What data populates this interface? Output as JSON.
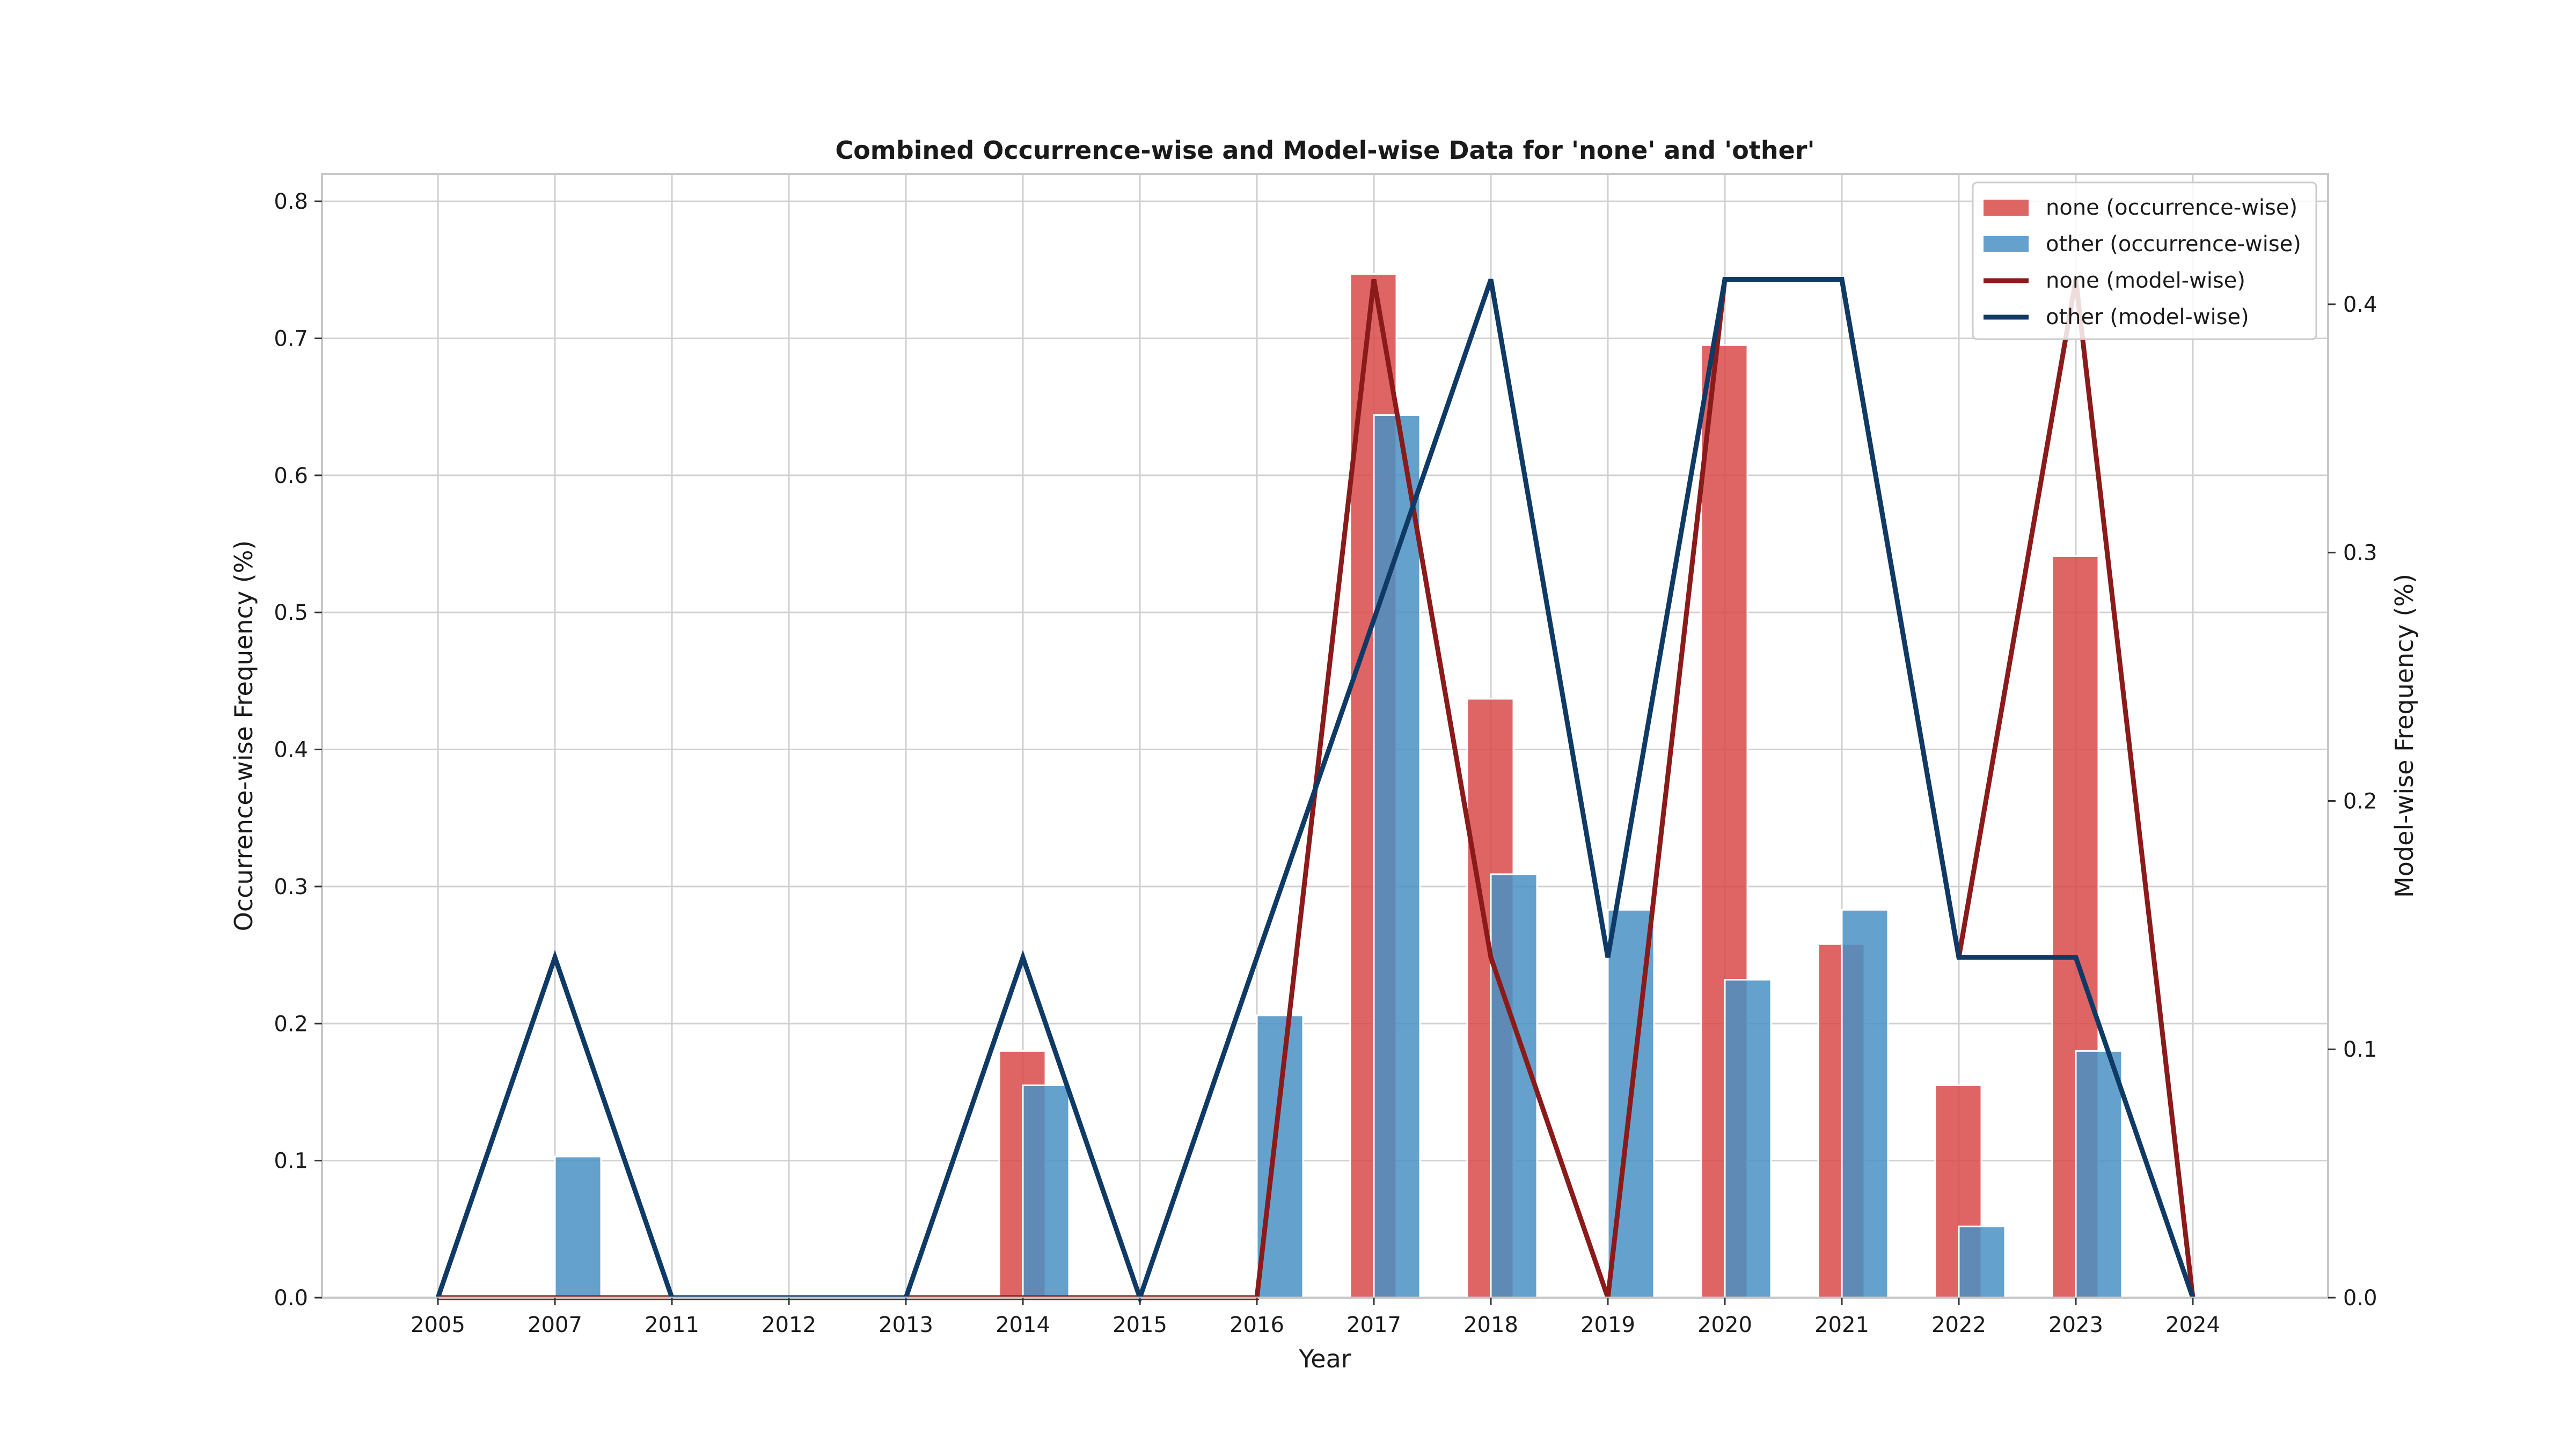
{
  "chart_data": {
    "type": "bar",
    "title": "Combined Occurrence-wise and Model-wise Data for 'none' and 'other'",
    "xlabel": "Year",
    "ylabel": "Occurrence-wise Frequency (%)",
    "y2label": "Model-wise Frequency (%)",
    "categories": [
      "2005",
      "2007",
      "2011",
      "2012",
      "2013",
      "2014",
      "2015",
      "2016",
      "2017",
      "2018",
      "2019",
      "2020",
      "2021",
      "2022",
      "2023",
      "2024"
    ],
    "ylim": [
      0,
      0.82
    ],
    "y2lim": [
      0,
      0.4525
    ],
    "yticks": [
      "0.0",
      "0.1",
      "0.2",
      "0.3",
      "0.4",
      "0.5",
      "0.6",
      "0.7",
      "0.8"
    ],
    "y2ticks": [
      "0.0",
      "0.1",
      "0.2",
      "0.3",
      "0.4"
    ],
    "grid": true,
    "legend_position": "top-right",
    "series": [
      {
        "name": "none (occurrence-wise)",
        "kind": "bar",
        "axis": "left",
        "color": "#d94a4a",
        "values": [
          0,
          0,
          0,
          0,
          0,
          0.18,
          0,
          0,
          0.747,
          0.437,
          0,
          0.695,
          0.258,
          0.155,
          0.541,
          0
        ]
      },
      {
        "name": "other (occurrence-wise)",
        "kind": "bar",
        "axis": "left",
        "color": "#4a90c4",
        "values": [
          0,
          0.103,
          0,
          0,
          0,
          0.155,
          0,
          0.206,
          0.644,
          0.309,
          0.283,
          0.232,
          0.283,
          0.052,
          0.18,
          0
        ]
      },
      {
        "name": "none (model-wise)",
        "kind": "line",
        "axis": "right",
        "color": "#8b1a1a",
        "values": [
          0,
          0,
          0,
          0,
          0,
          0,
          0,
          0,
          0.41,
          0.137,
          0,
          0.41,
          0.41,
          0.137,
          0.41,
          0
        ]
      },
      {
        "name": "other (model-wise)",
        "kind": "line",
        "axis": "right",
        "color": "#0f3a66",
        "values": [
          0,
          0.137,
          0,
          0,
          0,
          0.137,
          0,
          0.137,
          0.273,
          0.41,
          0.137,
          0.41,
          0.41,
          0.137,
          0.137,
          0
        ]
      }
    ]
  }
}
